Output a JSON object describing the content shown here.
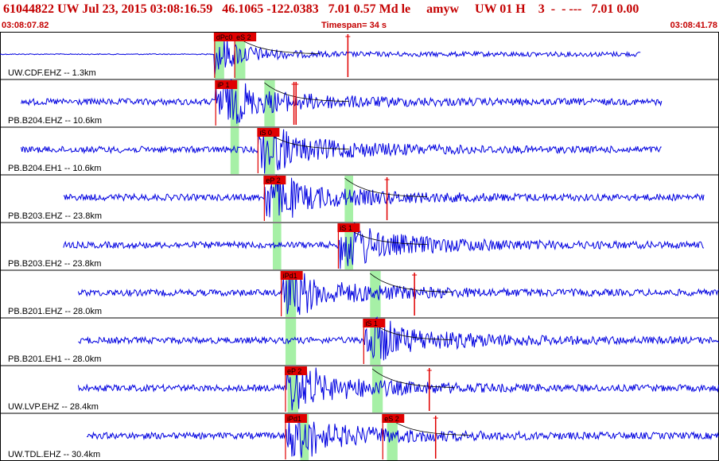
{
  "header": {
    "event_line": "61044822 UW Jul 23, 2015 03:08:16.59   46.1065 -122.0383   7.01 0.57 Md le     amyw     UW 01 H    3  -  - ---   7.01 0.00",
    "start_time": "03:08:07.82",
    "timespan": "Timespan=  34 s",
    "end_time": "03:08:41.78"
  },
  "colors": {
    "trace": "#0000e0",
    "pick": "#e00000",
    "pick_label_bg": "#e00000",
    "window_shade": "#a6f0a6",
    "frame": "#000000",
    "header_text": "#c40000"
  },
  "chart_data": {
    "type": "waveform",
    "x_units": "s",
    "x_range": [
      0,
      34
    ],
    "channels": [
      {
        "label": "UW.CDF.EHZ -- 1.3km",
        "start_s": 0.0,
        "end_s": 30.3,
        "picks": [
          {
            "label": "dPc0",
            "t": 10.15
          },
          {
            "label": "eS 2",
            "t": 11.1
          }
        ],
        "shaded_windows": [
          [
            10.15,
            10.6
          ],
          [
            11.1,
            11.6
          ]
        ],
        "extra_marks_s": [
          16.45
        ]
      },
      {
        "label": "PB.B204.EHZ -- 10.6km",
        "start_s": 1.0,
        "end_s": 31.3,
        "picks": [
          {
            "label": "iP 1",
            "t": 10.2
          }
        ],
        "shaded_windows": [
          [
            10.9,
            11.3
          ],
          [
            12.5,
            13.0
          ]
        ],
        "extra_marks_s": [
          13.9,
          14.0
        ]
      },
      {
        "label": "PB.B204.EH1 -- 10.6km",
        "start_s": 1.0,
        "end_s": 31.3,
        "picks": [
          {
            "label": "iS 0",
            "t": 12.2
          }
        ],
        "shaded_windows": [
          [
            10.9,
            11.3
          ],
          [
            12.5,
            13.0
          ]
        ],
        "extra_marks_s": []
      },
      {
        "label": "PB.B203.EHZ -- 23.8km",
        "start_s": 3.0,
        "end_s": 33.3,
        "picks": [
          {
            "label": "eP 2",
            "t": 12.5
          }
        ],
        "shaded_windows": [
          [
            12.9,
            13.3
          ],
          [
            16.3,
            16.7
          ]
        ],
        "extra_marks_s": [
          18.3
        ]
      },
      {
        "label": "PB.B203.EH2 -- 23.8km",
        "start_s": 3.0,
        "end_s": 33.3,
        "picks": [
          {
            "label": "iS 1",
            "t": 16.0
          }
        ],
        "shaded_windows": [
          [
            12.9,
            13.3
          ],
          [
            16.3,
            16.7
          ]
        ],
        "extra_marks_s": []
      },
      {
        "label": "PB.B201.EHZ -- 28.0km",
        "start_s": 3.7,
        "end_s": 34.0,
        "picks": [
          {
            "label": "iPd1",
            "t": 13.3
          }
        ],
        "shaded_windows": [
          [
            13.5,
            14.0
          ],
          [
            17.5,
            18.0
          ]
        ],
        "extra_marks_s": [
          19.6
        ]
      },
      {
        "label": "PB.B201.EH1 -- 28.0km",
        "start_s": 3.7,
        "end_s": 34.0,
        "picks": [
          {
            "label": "iS 1",
            "t": 17.2
          }
        ],
        "shaded_windows": [
          [
            13.5,
            14.0
          ],
          [
            17.5,
            18.0
          ]
        ],
        "extra_marks_s": []
      },
      {
        "label": "UW.LVP.EHZ -- 28.4km",
        "start_s": 3.7,
        "end_s": 34.0,
        "picks": [
          {
            "label": "eP 2",
            "t": 13.5
          }
        ],
        "shaded_windows": [
          [
            13.6,
            14.1
          ],
          [
            17.6,
            18.1
          ]
        ],
        "extra_marks_s": [
          20.3
        ]
      },
      {
        "label": "UW.TDL.EHZ -- 30.4km",
        "start_s": 4.1,
        "end_s": 34.0,
        "picks": [
          {
            "label": "iPd1",
            "t": 13.5
          },
          {
            "label": "eS 2",
            "t": 18.1
          }
        ],
        "shaded_windows": [
          [
            14.2,
            14.6
          ],
          [
            18.3,
            18.8
          ]
        ],
        "extra_marks_s": [
          20.6
        ]
      }
    ]
  }
}
